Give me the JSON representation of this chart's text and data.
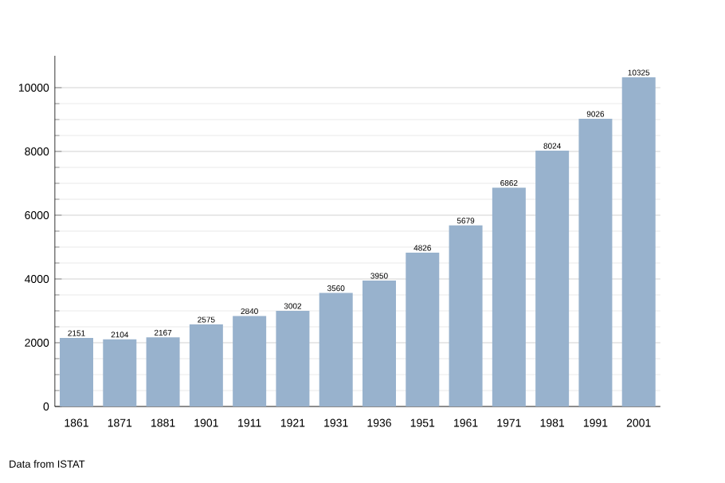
{
  "chart_data": {
    "type": "bar",
    "categories": [
      "1861",
      "1871",
      "1881",
      "1901",
      "1911",
      "1921",
      "1931",
      "1936",
      "1951",
      "1961",
      "1971",
      "1981",
      "1991",
      "2001"
    ],
    "values": [
      2151,
      2104,
      2167,
      2575,
      2840,
      3002,
      3560,
      3950,
      4826,
      5679,
      6862,
      8024,
      9026,
      10325
    ],
    "color": "#98b2cd",
    "ylim": [
      0,
      11000
    ],
    "yticks": [
      0,
      2000,
      4000,
      6000,
      8000,
      10000
    ],
    "grid": "y",
    "data_labels": true,
    "annotations": [
      "Data from ISTAT"
    ]
  }
}
